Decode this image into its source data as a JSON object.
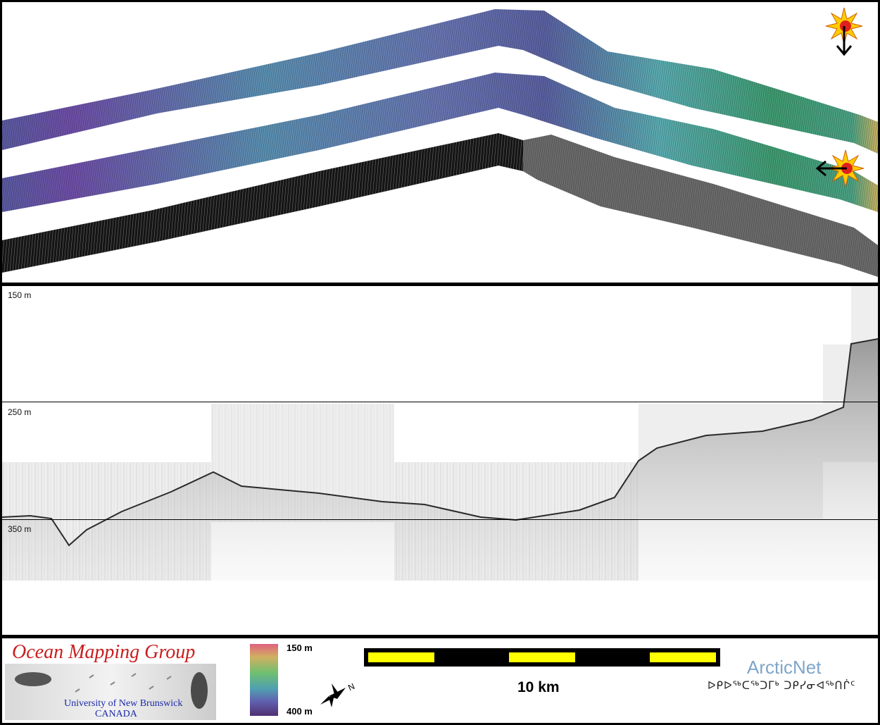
{
  "profile": {
    "depth_labels": [
      "150 m",
      "250 m",
      "350 m"
    ]
  },
  "colorbar": {
    "top_label": "150 m",
    "bottom_label": "400 m"
  },
  "scalebar": {
    "label": "10 km",
    "fill_color": "#ffff00"
  },
  "logos": {
    "omg_title": "Ocean Mapping Group",
    "omg_university": "University of New Brunswick",
    "omg_country": "CANADA",
    "arcticnet_title": "ArcticNet",
    "arcticnet_syllabics": "ᐅᑭᐅᖅᑕᖅᑐᒥᒃ ᑐᑭᓯᓂᐊᖅᑎᒌᑦ"
  },
  "icons": [
    "sun-illumination-icon",
    "down-arrow-icon",
    "left-arrow-icon",
    "north-arrow-icon"
  ],
  "north_label": "N"
}
